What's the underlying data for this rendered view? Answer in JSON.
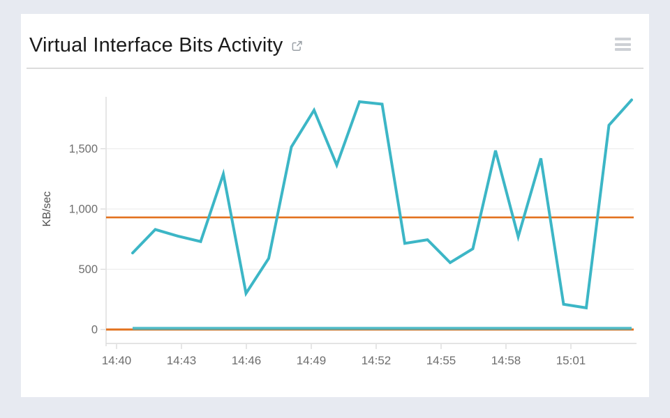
{
  "page": {
    "background_color": "#e7eaf1",
    "card_color": "#ffffff"
  },
  "header": {
    "title": "Virtual Interface Bits Activity",
    "external_link_icon": "open-in-new",
    "menu_icon": "hamburger-menu"
  },
  "chart_data": {
    "type": "line",
    "title": "Virtual Interface Bits Activity",
    "xlabel": "",
    "ylabel": "KB/sec",
    "ylim": [
      -120,
      1990
    ],
    "grid": "horizontal-only",
    "legend": "none",
    "axis_color": "#dcdcdc",
    "grid_color": "#ededed",
    "tick_color": "#d9d9d9",
    "tick_label_color": "#6e6e6e",
    "y_ticks": [
      {
        "value": 0,
        "label": "0"
      },
      {
        "value": 500,
        "label": "500"
      },
      {
        "value": 1000,
        "label": "1,000"
      },
      {
        "value": 1500,
        "label": "1,500"
      }
    ],
    "x_ticks": [
      "14:40",
      "14:43",
      "14:46",
      "14:49",
      "14:52",
      "14:55",
      "14:58",
      "15:01"
    ],
    "series": [
      {
        "name": "inbound-kb-per-sec",
        "color": "#3cb6c6",
        "line_width": 4,
        "x": [
          "14:41",
          "14:42",
          "14:43",
          "14:44",
          "14:45",
          "14:46",
          "14:47",
          "14:48",
          "14:49",
          "14:50",
          "14:51",
          "14:52",
          "14:53",
          "14:54",
          "14:55",
          "14:56",
          "14:57",
          "14:58",
          "14:59",
          "15:00",
          "15:01",
          "15:02",
          "15:03"
        ],
        "values": [
          635,
          830,
          775,
          730,
          1290,
          300,
          590,
          1515,
          1820,
          1365,
          1890,
          1870,
          715,
          745,
          555,
          670,
          1485,
          770,
          1420,
          210,
          180,
          1695,
          1905
        ]
      },
      {
        "name": "outbound-kb-per-sec",
        "color": "#3cb6c6",
        "line_width": 4.4,
        "opacity": 0.85,
        "constant_value": 10
      }
    ],
    "reference_lines": [
      {
        "name": "orange-threshold-upper",
        "color": "#e2711d",
        "value": 930,
        "line_width": 2.6
      },
      {
        "name": "orange-baseline",
        "color": "#e2711d",
        "value": 0,
        "line_width": 3
      }
    ]
  }
}
